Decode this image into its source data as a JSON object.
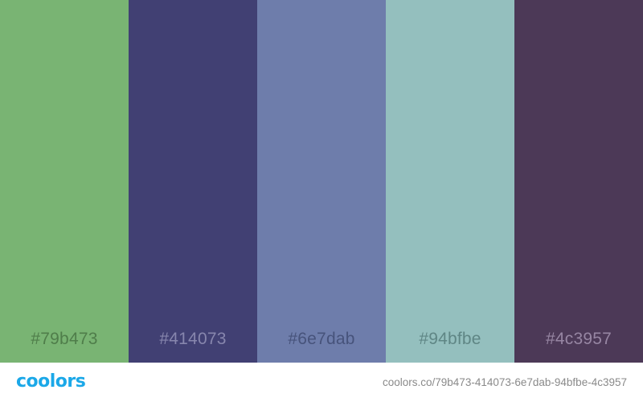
{
  "palette": {
    "swatches": [
      {
        "hex": "#79b473",
        "label": "#79b473",
        "label_color": "#4f7d4a"
      },
      {
        "hex": "#414073",
        "label": "#414073",
        "label_color": "#8786ad"
      },
      {
        "hex": "#6e7dab",
        "label": "#6e7dab",
        "label_color": "#47537b"
      },
      {
        "hex": "#94bfbe",
        "label": "#94bfbe",
        "label_color": "#5f8685"
      },
      {
        "hex": "#4c3957",
        "label": "#4c3957",
        "label_color": "#9786a3"
      }
    ]
  },
  "footer": {
    "logo_text": "coolors",
    "logo_color": "#1ba8e8",
    "url": "coolors.co/79b473-414073-6e7dab-94bfbe-4c3957"
  }
}
